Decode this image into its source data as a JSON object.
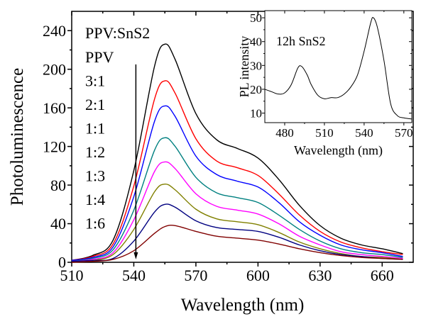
{
  "chart_data": [
    {
      "type": "line",
      "title": "",
      "xlabel": "Wavelength (nm)",
      "ylabel": "Photoluminescence",
      "xlim": [
        510,
        675
      ],
      "ylim": [
        0,
        260
      ],
      "xticks": [
        510,
        540,
        570,
        600,
        630,
        660
      ],
      "yticks": [
        0,
        40,
        80,
        120,
        160,
        200,
        240
      ],
      "grid": false,
      "legend_title": "PPV:SnS2",
      "annotation_arrow": {
        "x": 541,
        "from_y": 205,
        "to_y": 3,
        "meaning": "decreasing PL with increasing SnS2"
      },
      "x": [
        510,
        520,
        530,
        540,
        550,
        555,
        560,
        570,
        580,
        590,
        600,
        610,
        620,
        630,
        640,
        650,
        660,
        670
      ],
      "series": [
        {
          "name": "PPV",
          "color": "#000000",
          "values": [
            2,
            7,
            23,
            95,
            203,
            226,
            210,
            154,
            127,
            118,
            108,
            86,
            59,
            38,
            25,
            18,
            14,
            9
          ]
        },
        {
          "name": "3:1",
          "color": "#ff0000",
          "values": [
            2,
            6,
            19,
            79,
            169,
            188,
            175,
            128,
            105,
            98,
            90,
            71,
            49,
            32,
            21,
            15,
            11,
            8
          ]
        },
        {
          "name": "2:1",
          "color": "#0000ff",
          "values": [
            2,
            5,
            16,
            68,
            146,
            162,
            151,
            110,
            91,
            84,
            78,
            62,
            42,
            28,
            18,
            13,
            10,
            6
          ]
        },
        {
          "name": "1:1",
          "color": "#008080",
          "values": [
            1,
            4,
            13,
            54,
            116,
            129,
            120,
            88,
            72,
            67,
            62,
            49,
            34,
            22,
            14,
            10,
            8,
            5
          ]
        },
        {
          "name": "1:2",
          "color": "#ff00ff",
          "values": [
            1,
            3,
            10,
            44,
            94,
            104,
            97,
            71,
            58,
            54,
            50,
            40,
            27,
            18,
            11,
            8,
            6,
            4
          ]
        },
        {
          "name": "1:3",
          "color": "#808000",
          "values": [
            1,
            2,
            8,
            34,
            73,
            81,
            75,
            55,
            45,
            42,
            39,
            31,
            21,
            14,
            9,
            6,
            5,
            3
          ]
        },
        {
          "name": "1:4",
          "color": "#000080",
          "values": [
            1,
            2,
            4,
            22,
            52,
            60,
            57,
            43,
            36,
            34,
            32,
            26,
            18,
            12,
            8,
            6,
            4,
            3
          ]
        },
        {
          "name": "1:6",
          "color": "#800000",
          "values": [
            0,
            1,
            3,
            12,
            30,
            37,
            38,
            32,
            27,
            25,
            23,
            19,
            14,
            10,
            7,
            5,
            4,
            3
          ]
        }
      ]
    },
    {
      "type": "line",
      "title": "12h SnS2",
      "xlabel": "Wavelength (nm)",
      "ylabel": "PL intensity",
      "xlim": [
        465,
        576
      ],
      "ylim": [
        6,
        53
      ],
      "xticks": [
        480,
        510,
        540,
        570
      ],
      "yticks": [
        10,
        20,
        30,
        40,
        50
      ],
      "grid": false,
      "x": [
        465,
        470,
        475,
        480,
        485,
        490,
        493,
        497,
        500,
        505,
        510,
        515,
        520,
        525,
        530,
        535,
        540,
        545,
        547,
        550,
        555,
        560,
        565,
        570,
        576
      ],
      "series": [
        {
          "name": "12h SnS2",
          "color": "#000000",
          "values": [
            20,
            19,
            18,
            18.5,
            22,
            29,
            29.5,
            26,
            22,
            17.5,
            16,
            16.5,
            16.5,
            18,
            21,
            26,
            36,
            48,
            50,
            46,
            32,
            14,
            9,
            8,
            7.5
          ]
        }
      ]
    }
  ]
}
